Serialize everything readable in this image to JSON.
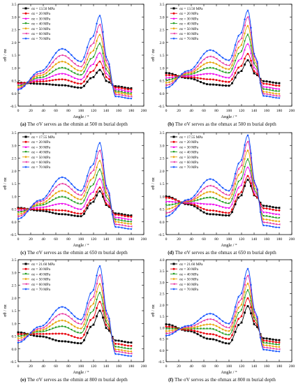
{
  "series_colors": [
    "#000000",
    "#e8000b",
    "#ee00ee",
    "#1a9a1a",
    "#e8a000",
    "#e62a9e",
    "#0046ff"
  ],
  "chart_data": [
    {
      "id": "a",
      "type": "line",
      "xlabel": "Angle / °",
      "ylabel": "σθ / σz",
      "xlim": [
        0,
        200
      ],
      "ylim": [
        -0.5,
        3.5
      ],
      "xticks": [
        0,
        20,
        40,
        60,
        80,
        100,
        120,
        140,
        160,
        180,
        200
      ],
      "yticks": [
        -0.5,
        0.0,
        0.5,
        1.0,
        1.5,
        2.0,
        2.5,
        3.0,
        3.5
      ],
      "ytick_labels": [
        "-0.5",
        "0.0",
        "0.5",
        "1.0",
        "1.5",
        "2.0",
        "2.5",
        "3.0",
        "3.5"
      ],
      "legend_position": "top-left",
      "series": [
        {
          "name": "σz = 13.50 MPa",
          "start": 0.42,
          "mid_peak": 0.32,
          "valley": 0.22,
          "peak": 0.92,
          "end": 0.2,
          "color": "#000000",
          "marker": "square"
        },
        {
          "name": "σz = 20 MPa",
          "start": 0.4,
          "mid_peak": 0.55,
          "valley": 0.38,
          "peak": 1.25,
          "end": 0.15,
          "color": "#e8000b",
          "marker": "circle"
        },
        {
          "name": "σz = 30 MPa",
          "start": 0.35,
          "mid_peak": 0.78,
          "valley": 0.55,
          "peak": 1.6,
          "end": 0.08,
          "color": "#ee00ee",
          "marker": "triangle-up"
        },
        {
          "name": "σz = 40 MPa",
          "start": 0.3,
          "mid_peak": 1.0,
          "valley": 0.72,
          "peak": 1.95,
          "end": 0.0,
          "color": "#1a9a1a",
          "marker": "triangle-down"
        },
        {
          "name": "σz = 50 MPa",
          "start": 0.25,
          "mid_peak": 1.25,
          "valley": 0.88,
          "peak": 2.3,
          "end": -0.05,
          "color": "#e8a000",
          "marker": "diamond"
        },
        {
          "name": "σz = 60 MPa",
          "start": 0.2,
          "mid_peak": 1.5,
          "valley": 1.05,
          "peak": 2.7,
          "end": -0.12,
          "color": "#e62a9e",
          "marker": "triangle-left"
        },
        {
          "name": "σz = 70 MPa",
          "start": 0.15,
          "mid_peak": 1.75,
          "valley": 1.25,
          "peak": 3.05,
          "end": -0.2,
          "color": "#0046ff",
          "marker": "star"
        }
      ],
      "caption_letter": "(a)",
      "caption_text": "The σV serves as the σhmin at 500 m burial depth"
    },
    {
      "id": "b",
      "type": "line",
      "xlabel": "Angle / °",
      "ylabel": "σθ / σz",
      "xlim": [
        0,
        200
      ],
      "ylim": [
        -0.5,
        3.5
      ],
      "xticks": [
        0,
        20,
        40,
        60,
        80,
        100,
        120,
        140,
        160,
        180,
        200
      ],
      "yticks": [
        -0.5,
        0.0,
        0.5,
        1.0,
        1.5,
        2.0,
        2.5,
        3.0,
        3.5
      ],
      "ytick_labels": [
        "-0.5",
        "0.0",
        "0.5",
        "1.0",
        "1.5",
        "2.0",
        "2.5",
        "3.0",
        "3.5"
      ],
      "legend_position": "top-left",
      "series": [
        {
          "name": "σz = 13.50 MPa",
          "start": 0.8,
          "mid_peak": 0.35,
          "valley": 0.3,
          "peak": 1.3,
          "end": 0.4,
          "color": "#000000",
          "marker": "square"
        },
        {
          "name": "σz = 20 MPa",
          "start": 0.72,
          "mid_peak": 0.55,
          "valley": 0.45,
          "peak": 1.55,
          "end": 0.3,
          "color": "#e8000b",
          "marker": "circle"
        },
        {
          "name": "σz = 30 MPa",
          "start": 0.62,
          "mid_peak": 0.78,
          "valley": 0.62,
          "peak": 1.95,
          "end": 0.18,
          "color": "#ee00ee",
          "marker": "triangle-up"
        },
        {
          "name": "σz = 40 MPa",
          "start": 0.52,
          "mid_peak": 1.0,
          "valley": 0.8,
          "peak": 2.3,
          "end": 0.08,
          "color": "#1a9a1a",
          "marker": "triangle-down"
        },
        {
          "name": "σz = 50 MPa",
          "start": 0.42,
          "mid_peak": 1.22,
          "valley": 0.95,
          "peak": 2.65,
          "end": -0.02,
          "color": "#e8a000",
          "marker": "diamond"
        },
        {
          "name": "σz = 60 MPa",
          "start": 0.32,
          "mid_peak": 1.45,
          "valley": 1.1,
          "peak": 3.0,
          "end": -0.1,
          "color": "#e62a9e",
          "marker": "triangle-left"
        },
        {
          "name": "σz = 70 MPa",
          "start": 0.22,
          "mid_peak": 1.7,
          "valley": 1.3,
          "peak": 3.25,
          "end": -0.18,
          "color": "#0046ff",
          "marker": "star"
        }
      ],
      "caption_letter": "(b)",
      "caption_text": "The σV serves as the σhmax at 500 m burial depth"
    },
    {
      "id": "c",
      "type": "line",
      "xlabel": "Angle / °",
      "ylabel": "σθ / σz",
      "xlim": [
        0,
        200
      ],
      "ylim": [
        -0.5,
        3.5
      ],
      "xticks": [
        0,
        20,
        40,
        60,
        80,
        100,
        120,
        140,
        160,
        180,
        200
      ],
      "yticks": [
        -0.5,
        0.0,
        0.5,
        1.0,
        1.5,
        2.0,
        2.5,
        3.0,
        3.5
      ],
      "ytick_labels": [
        "-0.5",
        "0.0",
        "0.5",
        "1.0",
        "1.5",
        "2.0",
        "2.5",
        "3.0",
        "3.5"
      ],
      "legend_position": "top-left",
      "series": [
        {
          "name": "σz = 17.55 MPa",
          "start": 0.55,
          "mid_peak": 0.3,
          "valley": 0.22,
          "peak": 1.2,
          "end": 0.25,
          "color": "#000000",
          "marker": "square"
        },
        {
          "name": "σz = 20 MPa",
          "start": 0.52,
          "mid_peak": 0.45,
          "valley": 0.32,
          "peak": 1.35,
          "end": 0.2,
          "color": "#e8000b",
          "marker": "circle"
        },
        {
          "name": "σz = 30 MPa",
          "start": 0.45,
          "mid_peak": 0.72,
          "valley": 0.5,
          "peak": 1.7,
          "end": 0.1,
          "color": "#ee00ee",
          "marker": "triangle-up"
        },
        {
          "name": "σz = 40 MPa",
          "start": 0.38,
          "mid_peak": 0.98,
          "valley": 0.7,
          "peak": 2.05,
          "end": 0.0,
          "color": "#1a9a1a",
          "marker": "triangle-down"
        },
        {
          "name": "σz = 50 MPa",
          "start": 0.3,
          "mid_peak": 1.22,
          "valley": 0.88,
          "peak": 2.4,
          "end": -0.08,
          "color": "#e8a000",
          "marker": "diamond"
        },
        {
          "name": "σz = 60 MPa",
          "start": 0.22,
          "mid_peak": 1.5,
          "valley": 1.05,
          "peak": 2.8,
          "end": -0.18,
          "color": "#e62a9e",
          "marker": "triangle-left"
        },
        {
          "name": "σz = 70 MPa",
          "start": 0.12,
          "mid_peak": 1.75,
          "valley": 1.22,
          "peak": 3.1,
          "end": -0.28,
          "color": "#0046ff",
          "marker": "star"
        }
      ],
      "caption_letter": "(c)",
      "caption_text": "The σV serves as the σhmin at 650 m burial depth"
    },
    {
      "id": "d",
      "type": "line",
      "xlabel": "Angle / °",
      "ylabel": "σθ / σz",
      "xlim": [
        0,
        200
      ],
      "ylim": [
        -0.5,
        3.5
      ],
      "xticks": [
        0,
        20,
        40,
        60,
        80,
        100,
        120,
        140,
        160,
        180,
        200
      ],
      "yticks": [
        -0.5,
        0.0,
        0.5,
        1.0,
        1.5,
        2.0,
        2.5,
        3.0,
        3.5
      ],
      "ytick_labels": [
        "-0.5",
        "0.0",
        "0.5",
        "1.0",
        "1.5",
        "2.0",
        "2.5",
        "3.0",
        "3.5"
      ],
      "legend_position": "top-left",
      "series": [
        {
          "name": "σz = 17.55 MPa",
          "start": 1.0,
          "mid_peak": 0.3,
          "valley": 0.25,
          "peak": 1.65,
          "end": 0.55,
          "color": "#000000",
          "marker": "square"
        },
        {
          "name": "σz = 20 MPa",
          "start": 0.95,
          "mid_peak": 0.45,
          "valley": 0.35,
          "peak": 1.8,
          "end": 0.45,
          "color": "#e8000b",
          "marker": "circle"
        },
        {
          "name": "σz = 30 MPa",
          "start": 0.8,
          "mid_peak": 0.7,
          "valley": 0.55,
          "peak": 2.15,
          "end": 0.3,
          "color": "#ee00ee",
          "marker": "triangle-up"
        },
        {
          "name": "σz = 40 MPa",
          "start": 0.65,
          "mid_peak": 0.95,
          "valley": 0.72,
          "peak": 2.45,
          "end": 0.15,
          "color": "#1a9a1a",
          "marker": "triangle-down"
        },
        {
          "name": "σz = 50 MPa",
          "start": 0.5,
          "mid_peak": 1.18,
          "valley": 0.9,
          "peak": 2.8,
          "end": 0.02,
          "color": "#e8a000",
          "marker": "diamond"
        },
        {
          "name": "σz = 60 MPa",
          "start": 0.35,
          "mid_peak": 1.42,
          "valley": 1.05,
          "peak": 3.15,
          "end": -0.1,
          "color": "#e62a9e",
          "marker": "triangle-left"
        },
        {
          "name": "σz = 70 MPa",
          "start": 0.22,
          "mid_peak": 1.68,
          "valley": 1.22,
          "peak": 3.4,
          "end": -0.22,
          "color": "#0046ff",
          "marker": "star"
        }
      ],
      "caption_letter": "(d)",
      "caption_text": "The σV serves as the σhmax at 650 m burial depth"
    },
    {
      "id": "e",
      "type": "line",
      "xlabel": "Angle / °",
      "ylabel": "σθ / σz",
      "xlim": [
        0,
        200
      ],
      "ylim": [
        -0.5,
        3.5
      ],
      "xticks": [
        0,
        20,
        40,
        60,
        80,
        100,
        120,
        140,
        160,
        180,
        200
      ],
      "yticks": [
        -0.5,
        0.0,
        0.5,
        1.0,
        1.5,
        2.0,
        2.5,
        3.0,
        3.5
      ],
      "ytick_labels": [
        "-0.5",
        "0.0",
        "0.5",
        "1.0",
        "1.5",
        "2.0",
        "2.5",
        "3.0",
        "3.5"
      ],
      "legend_position": "top-left",
      "series": [
        {
          "name": "σz = 21.60 MPa",
          "start": 0.65,
          "mid_peak": 0.3,
          "valley": 0.22,
          "peak": 1.5,
          "end": 0.25,
          "color": "#000000",
          "marker": "square"
        },
        {
          "name": "σz = 30 MPa",
          "start": 0.58,
          "mid_peak": 0.6,
          "valley": 0.42,
          "peak": 1.85,
          "end": 0.12,
          "color": "#e8000b",
          "marker": "circle"
        },
        {
          "name": "σz = 40 MPa",
          "start": 0.5,
          "mid_peak": 0.88,
          "valley": 0.62,
          "peak": 2.2,
          "end": 0.0,
          "color": "#1a9a1a",
          "marker": "triangle-down"
        },
        {
          "name": "σz = 50 MPa",
          "start": 0.42,
          "mid_peak": 1.12,
          "valley": 0.8,
          "peak": 2.55,
          "end": -0.1,
          "color": "#e8a000",
          "marker": "diamond"
        },
        {
          "name": "σz = 60 MPa",
          "start": 0.33,
          "mid_peak": 1.38,
          "valley": 0.98,
          "peak": 2.9,
          "end": -0.18,
          "color": "#e62a9e",
          "marker": "triangle-left"
        },
        {
          "name": "σz = 70 MPa",
          "start": 0.25,
          "mid_peak": 1.65,
          "valley": 1.15,
          "peak": 3.25,
          "end": -0.28,
          "color": "#0046ff",
          "marker": "star"
        }
      ],
      "caption_letter": "(e)",
      "caption_text": "The σV serves as the σhmin at 800 m burial depth"
    },
    {
      "id": "f",
      "type": "line",
      "xlabel": "Angle / °",
      "ylabel": "σθ / σz",
      "xlim": [
        0,
        200
      ],
      "ylim": [
        -0.5,
        4.0
      ],
      "xticks": [
        0,
        20,
        40,
        60,
        80,
        100,
        120,
        140,
        160,
        180,
        200
      ],
      "yticks": [
        -0.5,
        0.0,
        0.5,
        1.0,
        1.5,
        2.0,
        2.5,
        3.0,
        3.5,
        4.0
      ],
      "ytick_labels": [
        "-0.5",
        "0.0",
        "0.5",
        "1.0",
        "1.5",
        "2.0",
        "2.5",
        "3.0",
        "3.5",
        "4.0"
      ],
      "legend_position": "top-left",
      "series": [
        {
          "name": "σz = 21.60 MPa",
          "start": 1.15,
          "mid_peak": 0.5,
          "valley": 0.3,
          "peak": 1.95,
          "end": 0.45,
          "color": "#000000",
          "marker": "square"
        },
        {
          "name": "σz = 30 MPa",
          "start": 1.05,
          "mid_peak": 0.72,
          "valley": 0.5,
          "peak": 2.3,
          "end": 0.35,
          "color": "#e8000b",
          "marker": "circle"
        },
        {
          "name": "σz = 40 MPa",
          "start": 0.95,
          "mid_peak": 0.95,
          "valley": 0.68,
          "peak": 2.65,
          "end": 0.25,
          "color": "#1a9a1a",
          "marker": "triangle-down"
        },
        {
          "name": "σz = 50 MPa",
          "start": 0.85,
          "mid_peak": 1.15,
          "valley": 0.85,
          "peak": 2.95,
          "end": 0.15,
          "color": "#e8a000",
          "marker": "diamond"
        },
        {
          "name": "σz = 60 MPa",
          "start": 0.75,
          "mid_peak": 1.38,
          "valley": 1.0,
          "peak": 3.3,
          "end": 0.05,
          "color": "#e62a9e",
          "marker": "triangle-left"
        },
        {
          "name": "σz = 70 MPa",
          "start": 0.65,
          "mid_peak": 1.62,
          "valley": 1.18,
          "peak": 3.6,
          "end": -0.05,
          "color": "#0046ff",
          "marker": "star"
        }
      ],
      "caption_letter": "(f)",
      "caption_text": "The σV serves as the σhmax at 800 m burial depth"
    }
  ]
}
